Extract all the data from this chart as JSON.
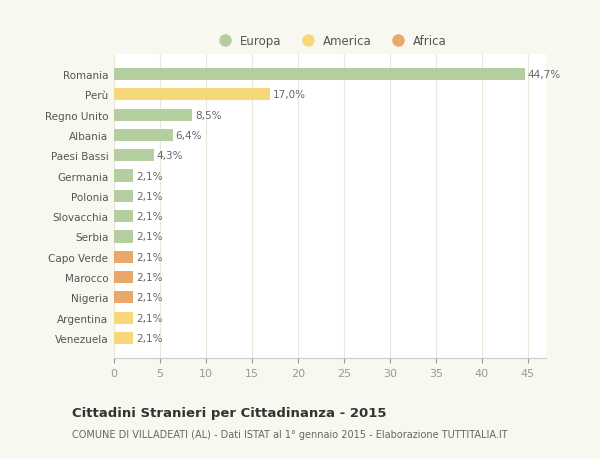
{
  "countries": [
    "Romania",
    "Perù",
    "Regno Unito",
    "Albania",
    "Paesi Bassi",
    "Germania",
    "Polonia",
    "Slovacchia",
    "Serbia",
    "Capo Verde",
    "Marocco",
    "Nigeria",
    "Argentina",
    "Venezuela"
  ],
  "values": [
    44.7,
    17.0,
    8.5,
    6.4,
    4.3,
    2.1,
    2.1,
    2.1,
    2.1,
    2.1,
    2.1,
    2.1,
    2.1,
    2.1
  ],
  "labels": [
    "44,7%",
    "17,0%",
    "8,5%",
    "6,4%",
    "4,3%",
    "2,1%",
    "2,1%",
    "2,1%",
    "2,1%",
    "2,1%",
    "2,1%",
    "2,1%",
    "2,1%",
    "2,1%"
  ],
  "continents": [
    "Europa",
    "America",
    "Europa",
    "Europa",
    "Europa",
    "Europa",
    "Europa",
    "Europa",
    "Europa",
    "Africa",
    "Africa",
    "Africa",
    "America",
    "America"
  ],
  "colors": {
    "Europa": "#b5ceA0",
    "America": "#f5d978",
    "Africa": "#e8a86a"
  },
  "legend_colors": {
    "Europa": "#b5ceA0",
    "America": "#f5d978",
    "Africa": "#e8a86a"
  },
  "title": "Cittadini Stranieri per Cittadinanza - 2015",
  "subtitle": "COMUNE DI VILLADEATI (AL) - Dati ISTAT al 1° gennaio 2015 - Elaborazione TUTTITALIA.IT",
  "xlim": [
    0,
    47
  ],
  "xticks": [
    0,
    5,
    10,
    15,
    20,
    25,
    30,
    35,
    40,
    45
  ],
  "background_color": "#f8f8f0",
  "plot_background": "#ffffff",
  "grid_color": "#e8e8d8"
}
